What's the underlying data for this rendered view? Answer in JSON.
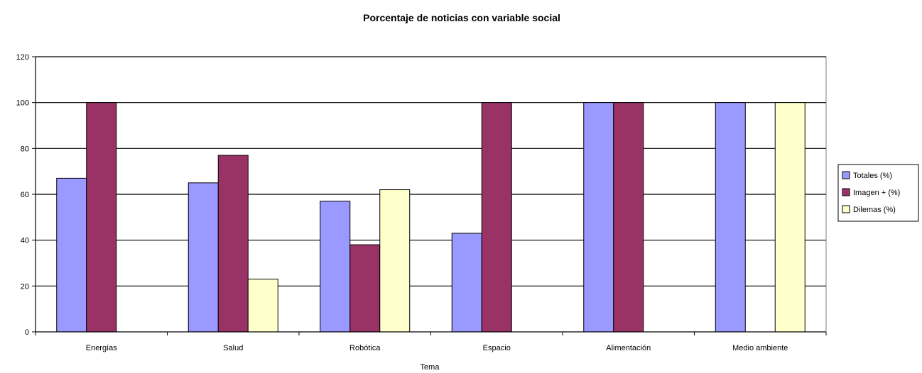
{
  "chart_data": {
    "type": "bar",
    "title": "Porcentaje de noticias con variable social",
    "xlabel": "Tema",
    "ylabel": "",
    "ylim": [
      0,
      120
    ],
    "yticks": [
      0,
      20,
      40,
      60,
      80,
      100,
      120
    ],
    "grid": true,
    "legend_position": "right",
    "categories": [
      "Energías",
      "Salud",
      "Robótica",
      "Espacio",
      "Alimentación",
      "Medio ambiente"
    ],
    "series": [
      {
        "name": "Totales (%)",
        "color": "#9999ff",
        "values": [
          67,
          65,
          57,
          43,
          100,
          100
        ]
      },
      {
        "name": "Imagen + (%)",
        "color": "#993366",
        "values": [
          100,
          77,
          38,
          100,
          100,
          0
        ]
      },
      {
        "name": "Dilemas (%)",
        "color": "#ffffcc",
        "values": [
          0,
          23,
          62,
          0,
          0,
          100
        ]
      }
    ]
  }
}
